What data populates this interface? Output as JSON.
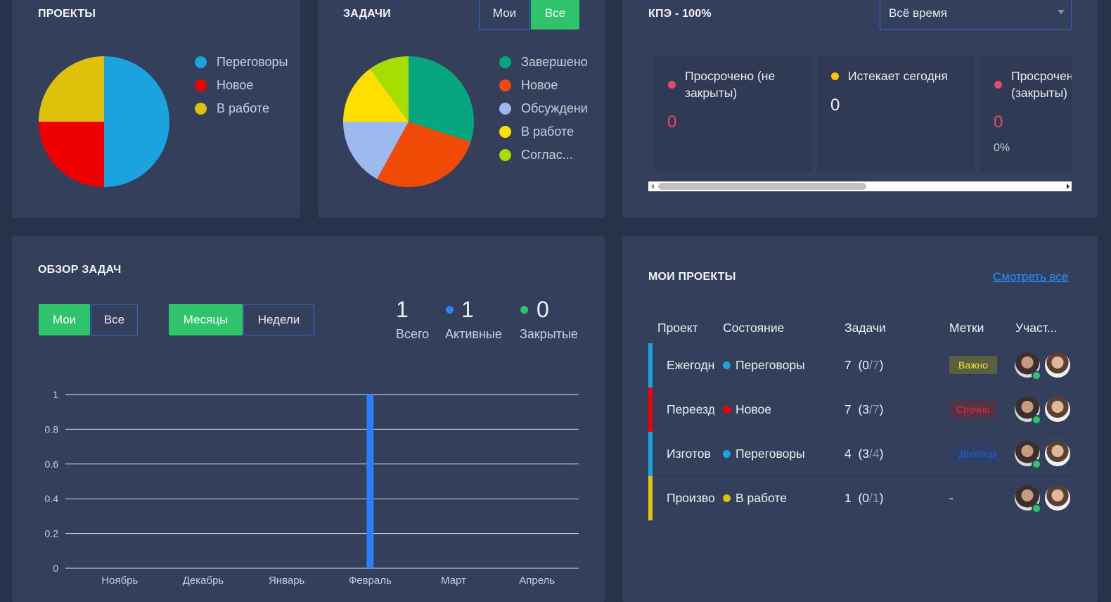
{
  "projects_card": {
    "title": "ПРОЕКТЫ",
    "pie": [
      {
        "label": "Переговоры",
        "value": 50,
        "color": "#1ba3dd"
      },
      {
        "label": "Новое",
        "value": 25,
        "color": "#ee0000"
      },
      {
        "label": "В работе",
        "value": 25,
        "color": "#dfc00b"
      }
    ],
    "legend_visible": [
      "Переговоры",
      "Новое",
      "В работе"
    ]
  },
  "tasks_card": {
    "title": "ЗАДАЧИ",
    "toggle": {
      "mine": "Мои",
      "all": "Все"
    },
    "pie": [
      {
        "label": "Завершено",
        "value": 30,
        "color": "#06a67e"
      },
      {
        "label": "Новое",
        "value": 28,
        "color": "#ef4a06"
      },
      {
        "label": "Обсуждение",
        "value": 17,
        "color": "#9db9ee"
      },
      {
        "label": "В работе",
        "value": 15,
        "color": "#ffde00"
      },
      {
        "label": "Согласование",
        "value": 10,
        "color": "#a5de00"
      }
    ],
    "legend_visible": [
      "Завершено",
      "Новое",
      "Обсуждени",
      "В работе",
      "Соглас..."
    ]
  },
  "kpi_card": {
    "title": "КПЭ - 100%",
    "period": "Всё время",
    "items": [
      {
        "label": "Просрочено (не закрыты)",
        "value": "0",
        "dot": "#e44b6a",
        "value_color": "#e44b6a"
      },
      {
        "label": "Истекает сегодня",
        "value": "0",
        "dot": "#ffc400",
        "value_color": "#eef1f6"
      },
      {
        "label": "Просрочено (закрыты)",
        "value": "0",
        "extra": "0%",
        "dot": "#e44b6a",
        "value_color": "#e44b6a"
      }
    ]
  },
  "overview_card": {
    "title": "ОБЗОР ЗАДАЧ",
    "toggle_who": {
      "mine": "Мои",
      "all": "Все"
    },
    "toggle_period": {
      "months": "Месяцы",
      "weeks": "Недели"
    },
    "stats": {
      "total": {
        "value": "1",
        "label": "Всего"
      },
      "active": {
        "value": "1",
        "label": "Активные",
        "dot": "#2b7fff"
      },
      "closed": {
        "value": "0",
        "label": "Закрытые",
        "dot": "#2fc46c"
      }
    }
  },
  "chart_data": {
    "type": "bar",
    "categories": [
      "Ноябрь",
      "Декабрь",
      "Январь",
      "Февраль",
      "Март",
      "Апрель"
    ],
    "values": [
      0,
      0,
      0,
      1,
      0,
      0
    ],
    "ylim": [
      0,
      1
    ],
    "yticks": [
      "0",
      "0.2",
      "0.4",
      "0.6",
      "0.8",
      "1"
    ],
    "ytick_values": [
      0,
      0.2,
      0.4,
      0.6,
      0.8,
      1
    ],
    "bar_color": "#2b7fff",
    "grid": true,
    "title": "",
    "xlabel": "",
    "ylabel": ""
  },
  "my_projects_card": {
    "title": "МОИ ПРОЕКТЫ",
    "view_all": "Смотреть все",
    "columns": [
      "Проект",
      "Состояние",
      "Задачи",
      "Метки",
      "Участ..."
    ],
    "rows": [
      {
        "name": "Ежегодн",
        "bar": "#1ba3dd",
        "status": "Переговоры",
        "status_color": "#1ba3dd",
        "tasks_total": "7",
        "tasks_open": "0",
        "tasks_all": "/7",
        "tag": "Важно",
        "tag_bg": "#5a5f3f",
        "tag_color": "#f2e23a"
      },
      {
        "name": "Переезд",
        "bar": "#ee0000",
        "status": "Новое",
        "status_color": "#ee0000",
        "tasks_total": "7",
        "tasks_open": "3",
        "tasks_all": "/7",
        "tag": "Срочно",
        "tag_bg": "#51344a",
        "tag_color": "#ff2222"
      },
      {
        "name": "Изготов",
        "bar": "#1ba3dd",
        "status": "Переговоры",
        "status_color": "#1ba3dd",
        "tasks_total": "4",
        "tasks_open": "3",
        "tasks_all": "/4",
        "tag": "Долгосрочно",
        "tag_bg": "#2e4068",
        "tag_color": "#1f5fd0"
      },
      {
        "name": "Произво",
        "bar": "#dfc00b",
        "status": "В работе",
        "status_color": "#dfc00b",
        "tasks_total": "1",
        "tasks_open": "0",
        "tasks_all": "/1",
        "tag": "-",
        "tag_bg": "",
        "tag_color": "#eef1f6"
      }
    ]
  }
}
